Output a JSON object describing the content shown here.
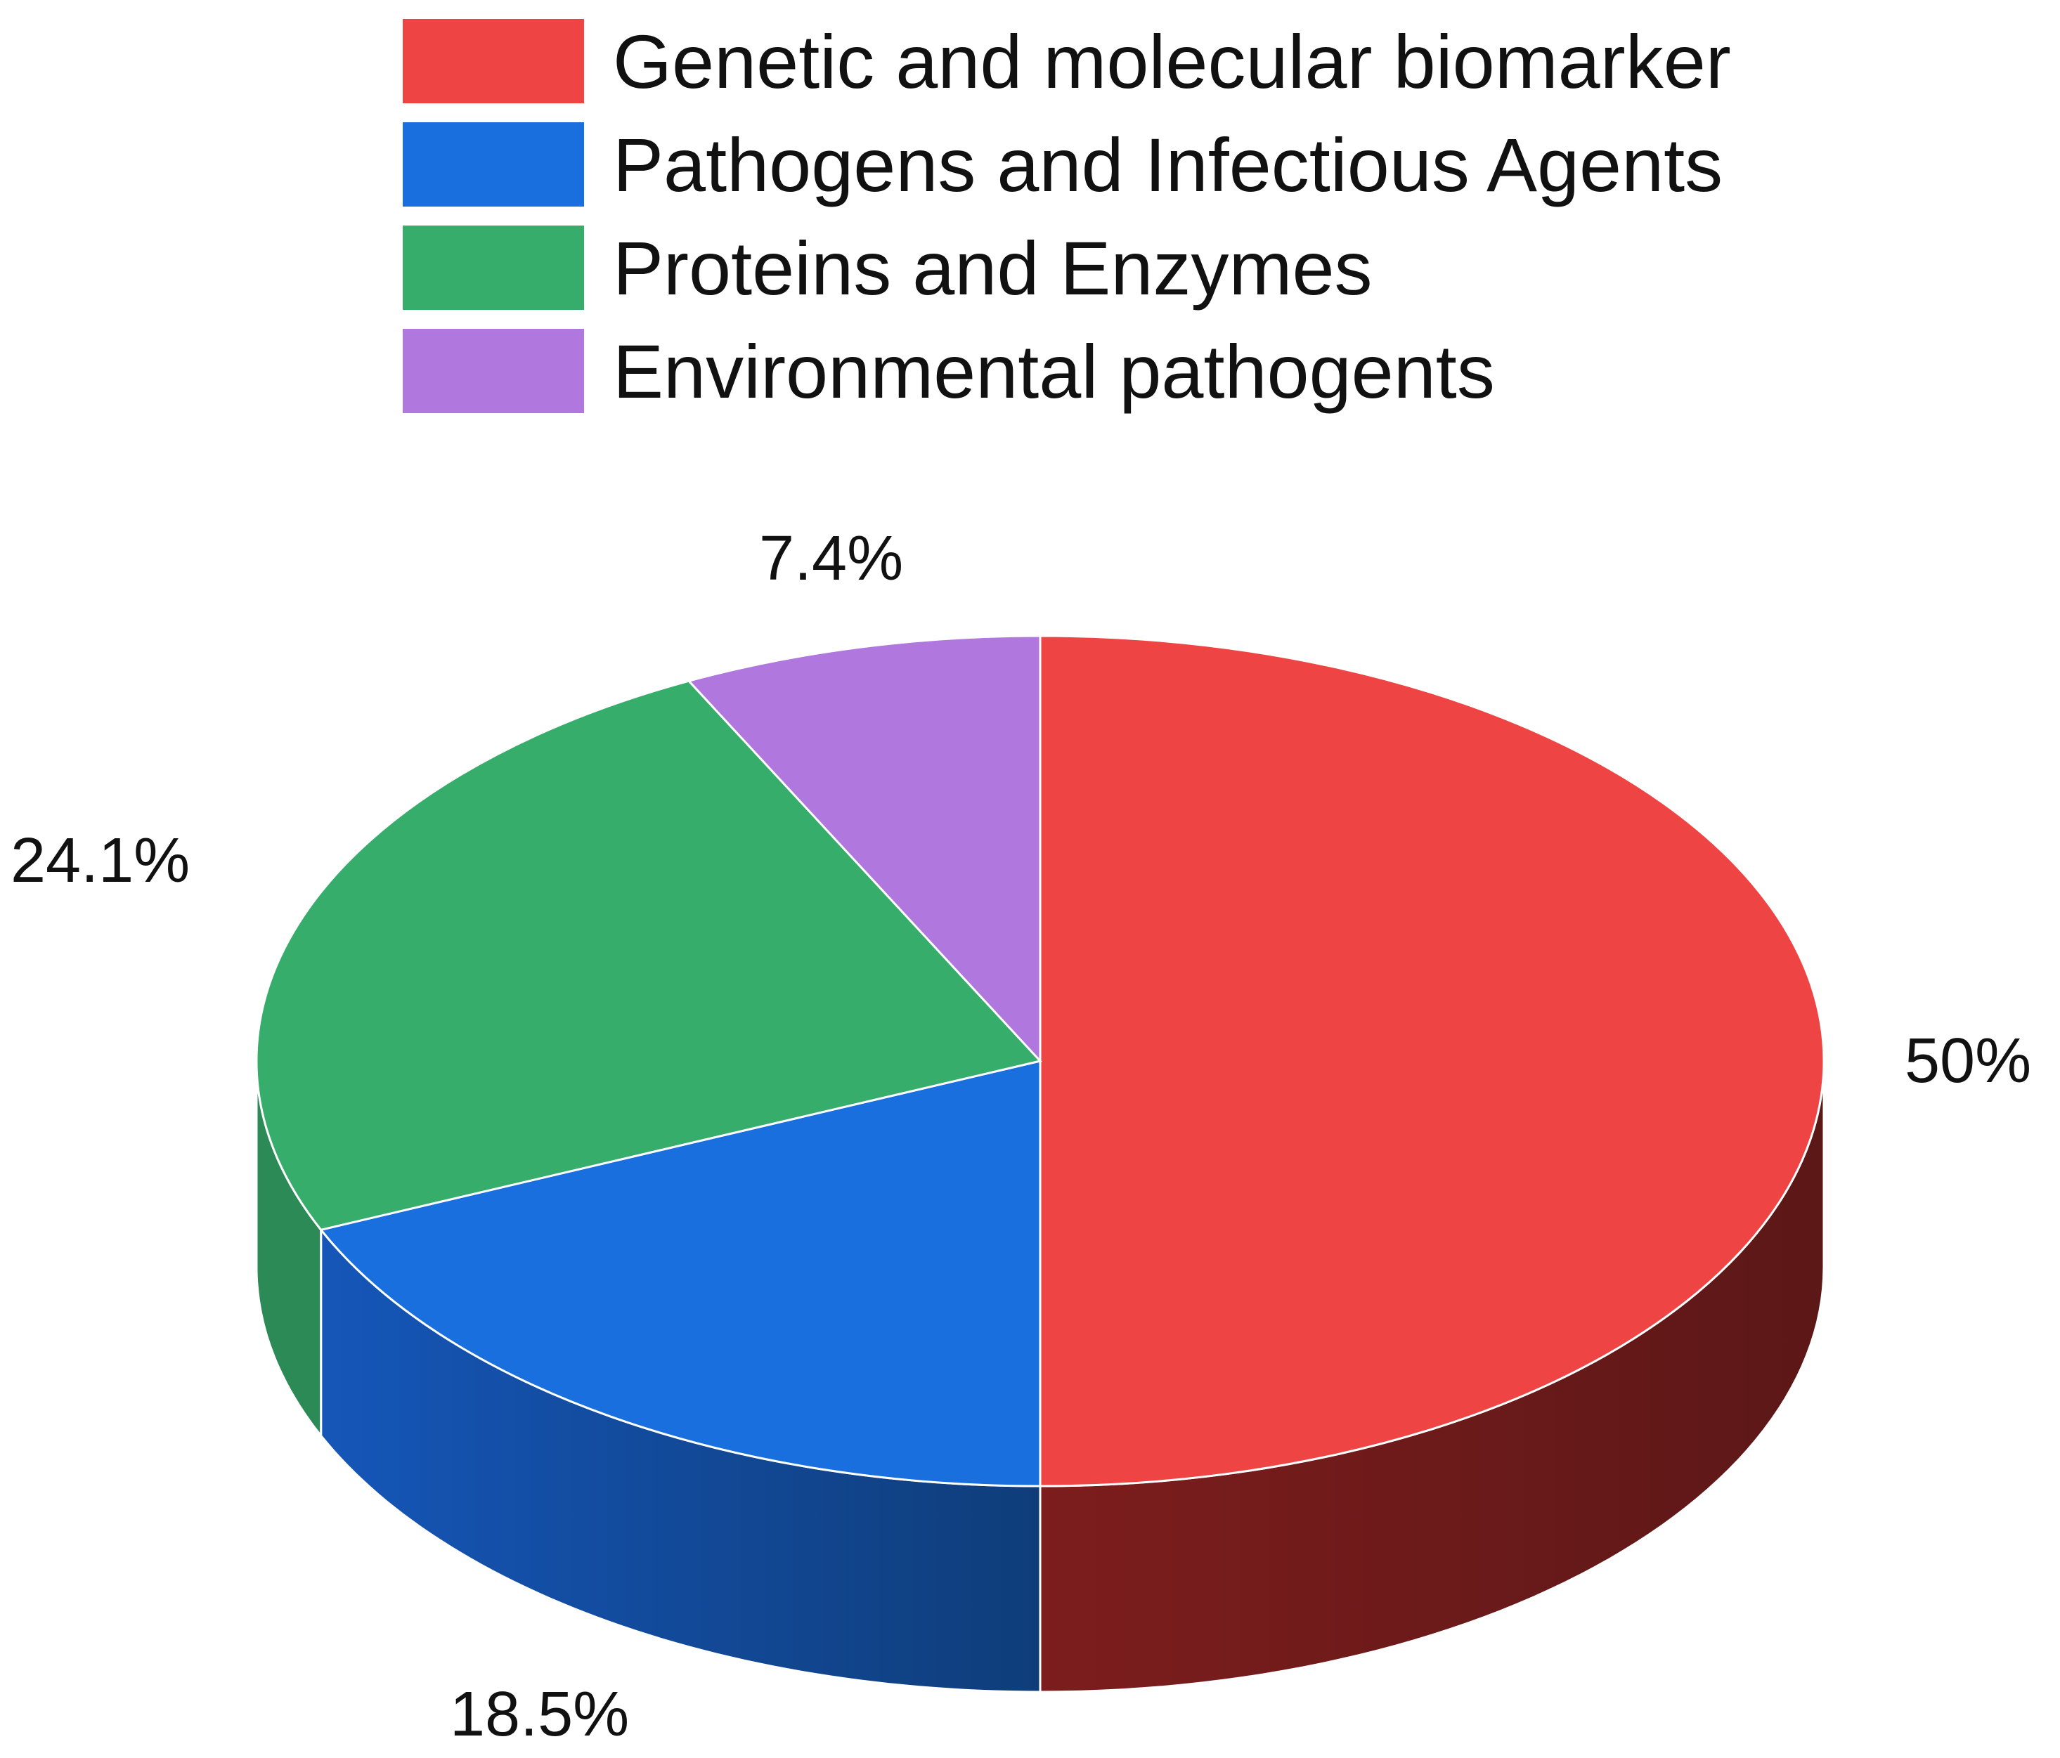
{
  "chart_data": {
    "type": "pie",
    "variant": "3d",
    "title": "",
    "legend_position": "top",
    "slices": [
      {
        "label": "Genetic and molecular biomarker",
        "value": 50.0,
        "value_label": "50%",
        "color": "#ef4444",
        "side_color": "#7d1d1d",
        "side_color_dark": "#5c1717"
      },
      {
        "label": "Pathogens and Infectious Agents",
        "value": 18.5,
        "value_label": "18.5%",
        "color": "#1a6fdf",
        "side_color": "#1556b8",
        "side_color_dark": "#0f3d7a"
      },
      {
        "label": "Proteins and Enzymes",
        "value": 24.1,
        "value_label": "24.1%",
        "color": "#37ad6b",
        "side_color": "#2c8a56",
        "side_color_dark": "#2c8a56"
      },
      {
        "label": "Environmental pathogents",
        "value": 7.4,
        "value_label": "7.4%",
        "color": "#b078de",
        "side_color": "#8a5cb0",
        "side_color_dark": "#8a5cb0"
      }
    ]
  }
}
